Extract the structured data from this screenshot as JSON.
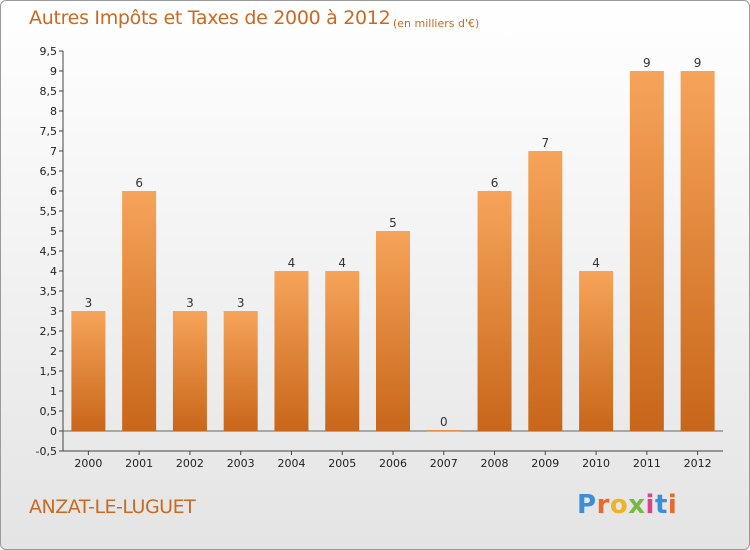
{
  "header": {
    "title": "Autres Impôts et Taxes de 2000 à 2012",
    "subtitle": "(en milliers d'€)"
  },
  "footer": {
    "town": "ANZAT-LE-LUGUET",
    "logo": [
      "P",
      "r",
      "o",
      "x",
      "i",
      "t",
      "i"
    ]
  },
  "colors": {
    "bar_top": "#f6a45a",
    "bar_bottom": "#c8661a",
    "accent": "#c86a22"
  },
  "chart_data": {
    "type": "bar",
    "title": "Autres Impôts et Taxes de 2000 à 2012",
    "subtitle": "(en milliers d'€)",
    "categories": [
      "2000",
      "2001",
      "2002",
      "2003",
      "2004",
      "2005",
      "2006",
      "2007",
      "2008",
      "2009",
      "2010",
      "2011",
      "2012"
    ],
    "values": [
      3,
      6,
      3,
      3,
      4,
      4,
      5,
      0,
      6,
      7,
      4,
      9,
      9
    ],
    "data_labels": [
      "3",
      "6",
      "3",
      "3",
      "4",
      "4",
      "5",
      "0",
      "6",
      "7",
      "4",
      "9",
      "9"
    ],
    "yticks": [
      "-0,5",
      "0",
      "0,5",
      "1",
      "1,5",
      "2",
      "2,5",
      "3",
      "3,5",
      "4",
      "4,5",
      "5",
      "5,5",
      "6",
      "6,5",
      "7",
      "7,5",
      "8",
      "8,5",
      "9",
      "9,5"
    ],
    "ylim": [
      -0.5,
      9.5
    ],
    "grid": false,
    "legend": "none",
    "xlabel": "",
    "ylabel": ""
  }
}
